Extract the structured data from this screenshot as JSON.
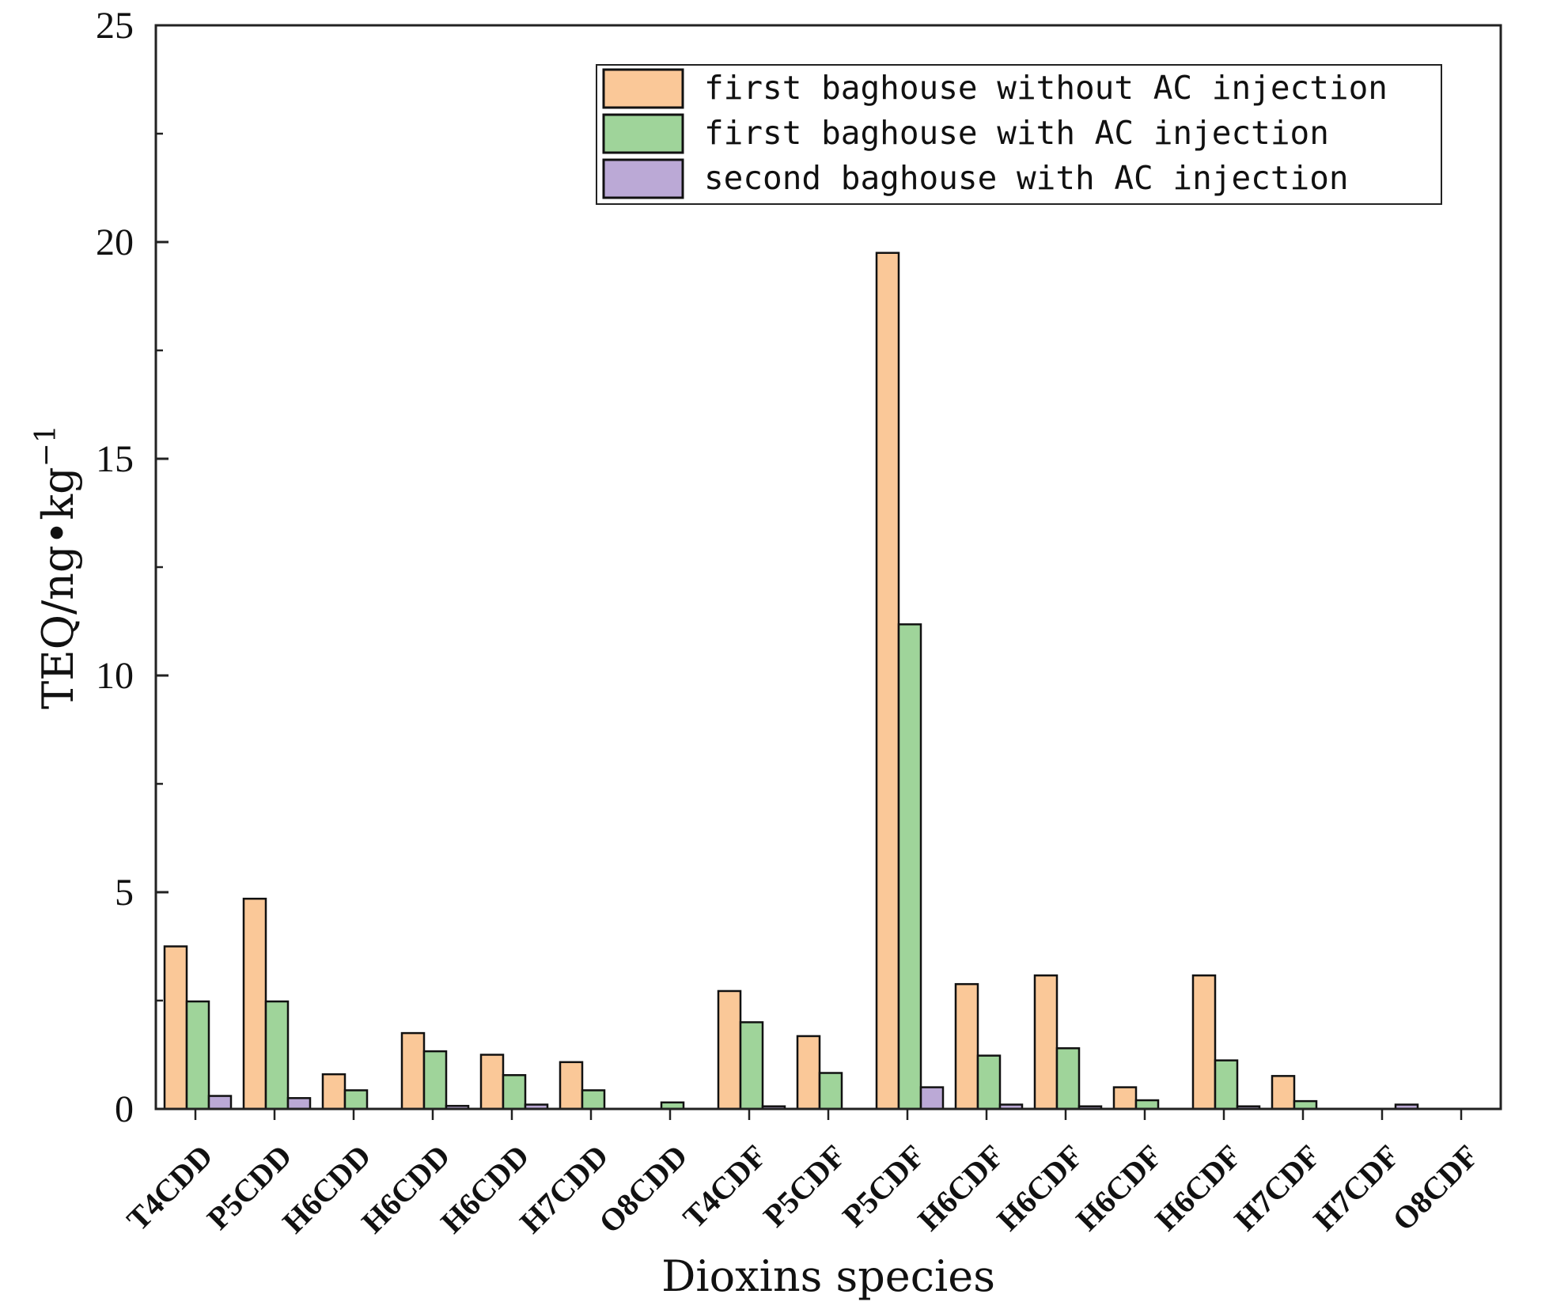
{
  "chart_data": {
    "type": "bar",
    "xlabel": "Dioxins species",
    "ylabel": "TEQ/ng•kg",
    "ylabel_sup": "−1",
    "ylim": [
      0,
      25
    ],
    "yticks": [
      0,
      5,
      10,
      15,
      20,
      25
    ],
    "grid": false,
    "legend_position": "top-right",
    "categories": [
      "T4CDD",
      "P5CDD",
      "H6CDD",
      "H6CDD",
      "H6CDD",
      "H7CDD",
      "O8CDD",
      "T4CDF",
      "P5CDF",
      "P5CDF",
      "H6CDF",
      "H6CDF",
      "H6CDF",
      "H6CDF",
      "H7CDF",
      "H7CDF",
      "O8CDF"
    ],
    "series": [
      {
        "name": "first baghouse without AC injection",
        "color": "#fac898",
        "values": [
          3.75,
          4.85,
          0.8,
          1.75,
          1.25,
          1.08,
          0,
          2.72,
          1.68,
          19.75,
          2.88,
          3.08,
          0.5,
          3.08,
          0.76,
          0,
          0
        ]
      },
      {
        "name": "first baghouse with AC injection",
        "color": "#9fd49a",
        "values": [
          2.48,
          2.48,
          0.43,
          1.33,
          0.78,
          0.43,
          0.15,
          2.0,
          0.83,
          11.18,
          1.23,
          1.4,
          0.2,
          1.12,
          0.18,
          0,
          0
        ]
      },
      {
        "name": "second baghouse with AC injection",
        "color": "#bba9d6",
        "values": [
          0.3,
          0.25,
          0,
          0.07,
          0.1,
          0,
          0,
          0.06,
          0,
          0.5,
          0.1,
          0.06,
          0,
          0.06,
          0,
          0.1,
          0
        ]
      }
    ]
  }
}
